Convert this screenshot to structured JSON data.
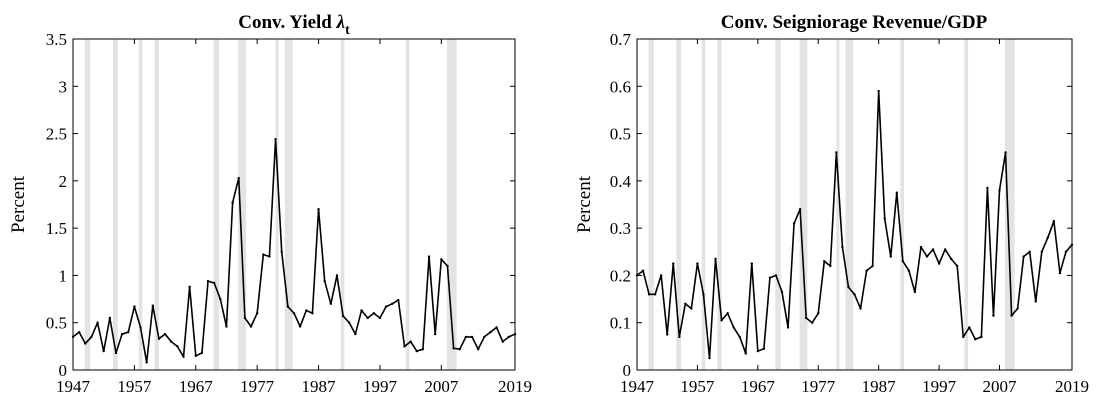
{
  "chart_data": [
    {
      "type": "line",
      "title": "Conv. Yield ",
      "title_symbol": "λ",
      "title_subscript": "t",
      "xlabel": "",
      "ylabel": "Percent",
      "xlim": [
        1947,
        2019
      ],
      "ylim": [
        0,
        3.5
      ],
      "xticks": [
        1947,
        1957,
        1967,
        1977,
        1987,
        1997,
        2007,
        2019
      ],
      "yticks": [
        0,
        0.5,
        1,
        1.5,
        2,
        2.5,
        3,
        3.5
      ],
      "ytick_labels": [
        "0",
        "0.5",
        "1",
        "1.5",
        "2",
        "2.5",
        "3",
        "3.5"
      ],
      "grid": false,
      "legend": "none",
      "recession_shading": [
        [
          1948.9,
          1949.8
        ],
        [
          1953.5,
          1954.3
        ],
        [
          1957.7,
          1958.3
        ],
        [
          1960.3,
          1961.0
        ],
        [
          1969.9,
          1970.8
        ],
        [
          1973.9,
          1975.2
        ],
        [
          1980.0,
          1980.5
        ],
        [
          1981.5,
          1982.8
        ],
        [
          1990.6,
          1991.2
        ],
        [
          2001.2,
          2001.8
        ],
        [
          2007.9,
          2009.5
        ]
      ],
      "series": [
        {
          "x": [
            1947,
            1948,
            1949,
            1950,
            1951,
            1952,
            1953,
            1954,
            1955,
            1956,
            1957,
            1958,
            1959,
            1960,
            1961,
            1962,
            1963,
            1964,
            1965,
            1966,
            1967,
            1968,
            1969,
            1970,
            1971,
            1972,
            1973,
            1974,
            1975,
            1976,
            1977,
            1978,
            1979,
            1980,
            1981,
            1982,
            1983,
            1984,
            1985,
            1986,
            1987,
            1988,
            1989,
            1990,
            1991,
            1992,
            1993,
            1994,
            1995,
            1996,
            1997,
            1998,
            1999,
            2000,
            2001,
            2002,
            2003,
            2004,
            2005,
            2006,
            2007,
            2008,
            2009,
            2010,
            2011,
            2012,
            2013,
            2014,
            2015,
            2016,
            2017,
            2018,
            2019
          ],
          "values": [
            0.35,
            0.4,
            0.28,
            0.35,
            0.5,
            0.2,
            0.55,
            0.18,
            0.38,
            0.4,
            0.67,
            0.45,
            0.08,
            0.68,
            0.33,
            0.38,
            0.3,
            0.25,
            0.14,
            0.88,
            0.15,
            0.18,
            0.94,
            0.92,
            0.75,
            0.46,
            1.77,
            2.03,
            0.55,
            0.46,
            0.6,
            1.22,
            1.2,
            2.44,
            1.25,
            0.67,
            0.6,
            0.46,
            0.63,
            0.6,
            1.7,
            0.94,
            0.7,
            1.0,
            0.57,
            0.5,
            0.38,
            0.63,
            0.55,
            0.6,
            0.55,
            0.67,
            0.7,
            0.74,
            0.25,
            0.3,
            0.2,
            0.22,
            1.2,
            0.38,
            1.17,
            1.1,
            0.23,
            0.22,
            0.35,
            0.35,
            0.22,
            0.35,
            0.4,
            0.45,
            0.3,
            0.35,
            0.38
          ]
        }
      ]
    },
    {
      "type": "line",
      "title": "Conv. Seigniorage Revenue/GDP",
      "xlabel": "",
      "ylabel": "Percent",
      "xlim": [
        1947,
        2019
      ],
      "ylim": [
        0,
        0.7
      ],
      "xticks": [
        1947,
        1957,
        1967,
        1977,
        1987,
        1997,
        2007,
        2019
      ],
      "yticks": [
        0,
        0.1,
        0.2,
        0.3,
        0.4,
        0.5,
        0.6,
        0.7
      ],
      "ytick_labels": [
        "0",
        "0.1",
        "0.2",
        "0.3",
        "0.4",
        "0.5",
        "0.6",
        "0.7"
      ],
      "grid": false,
      "legend": "none",
      "recession_shading": [
        [
          1948.9,
          1949.8
        ],
        [
          1953.5,
          1954.3
        ],
        [
          1957.7,
          1958.3
        ],
        [
          1960.3,
          1961.0
        ],
        [
          1969.9,
          1970.8
        ],
        [
          1973.9,
          1975.2
        ],
        [
          1980.0,
          1980.5
        ],
        [
          1981.5,
          1982.8
        ],
        [
          1990.6,
          1991.2
        ],
        [
          2001.2,
          2001.8
        ],
        [
          2007.9,
          2009.5
        ]
      ],
      "series": [
        {
          "x": [
            1947,
            1948,
            1949,
            1950,
            1951,
            1952,
            1953,
            1954,
            1955,
            1956,
            1957,
            1958,
            1959,
            1960,
            1961,
            1962,
            1963,
            1964,
            1965,
            1966,
            1967,
            1968,
            1969,
            1970,
            1971,
            1972,
            1973,
            1974,
            1975,
            1976,
            1977,
            1978,
            1979,
            1980,
            1981,
            1982,
            1983,
            1984,
            1985,
            1986,
            1987,
            1988,
            1989,
            1990,
            1991,
            1992,
            1993,
            1994,
            1995,
            1996,
            1997,
            1998,
            1999,
            2000,
            2001,
            2002,
            2003,
            2004,
            2005,
            2006,
            2007,
            2008,
            2009,
            2010,
            2011,
            2012,
            2013,
            2014,
            2015,
            2016,
            2017,
            2018,
            2019
          ],
          "values": [
            0.2,
            0.21,
            0.16,
            0.16,
            0.2,
            0.075,
            0.225,
            0.07,
            0.14,
            0.13,
            0.225,
            0.16,
            0.025,
            0.235,
            0.105,
            0.12,
            0.09,
            0.07,
            0.035,
            0.225,
            0.04,
            0.045,
            0.195,
            0.2,
            0.165,
            0.09,
            0.31,
            0.34,
            0.11,
            0.1,
            0.12,
            0.23,
            0.22,
            0.46,
            0.26,
            0.175,
            0.16,
            0.13,
            0.21,
            0.22,
            0.59,
            0.32,
            0.24,
            0.375,
            0.23,
            0.21,
            0.165,
            0.26,
            0.24,
            0.255,
            0.225,
            0.255,
            0.235,
            0.22,
            0.07,
            0.09,
            0.065,
            0.07,
            0.385,
            0.115,
            0.38,
            0.46,
            0.115,
            0.13,
            0.24,
            0.25,
            0.145,
            0.25,
            0.28,
            0.315,
            0.205,
            0.25,
            0.265
          ]
        }
      ]
    }
  ]
}
